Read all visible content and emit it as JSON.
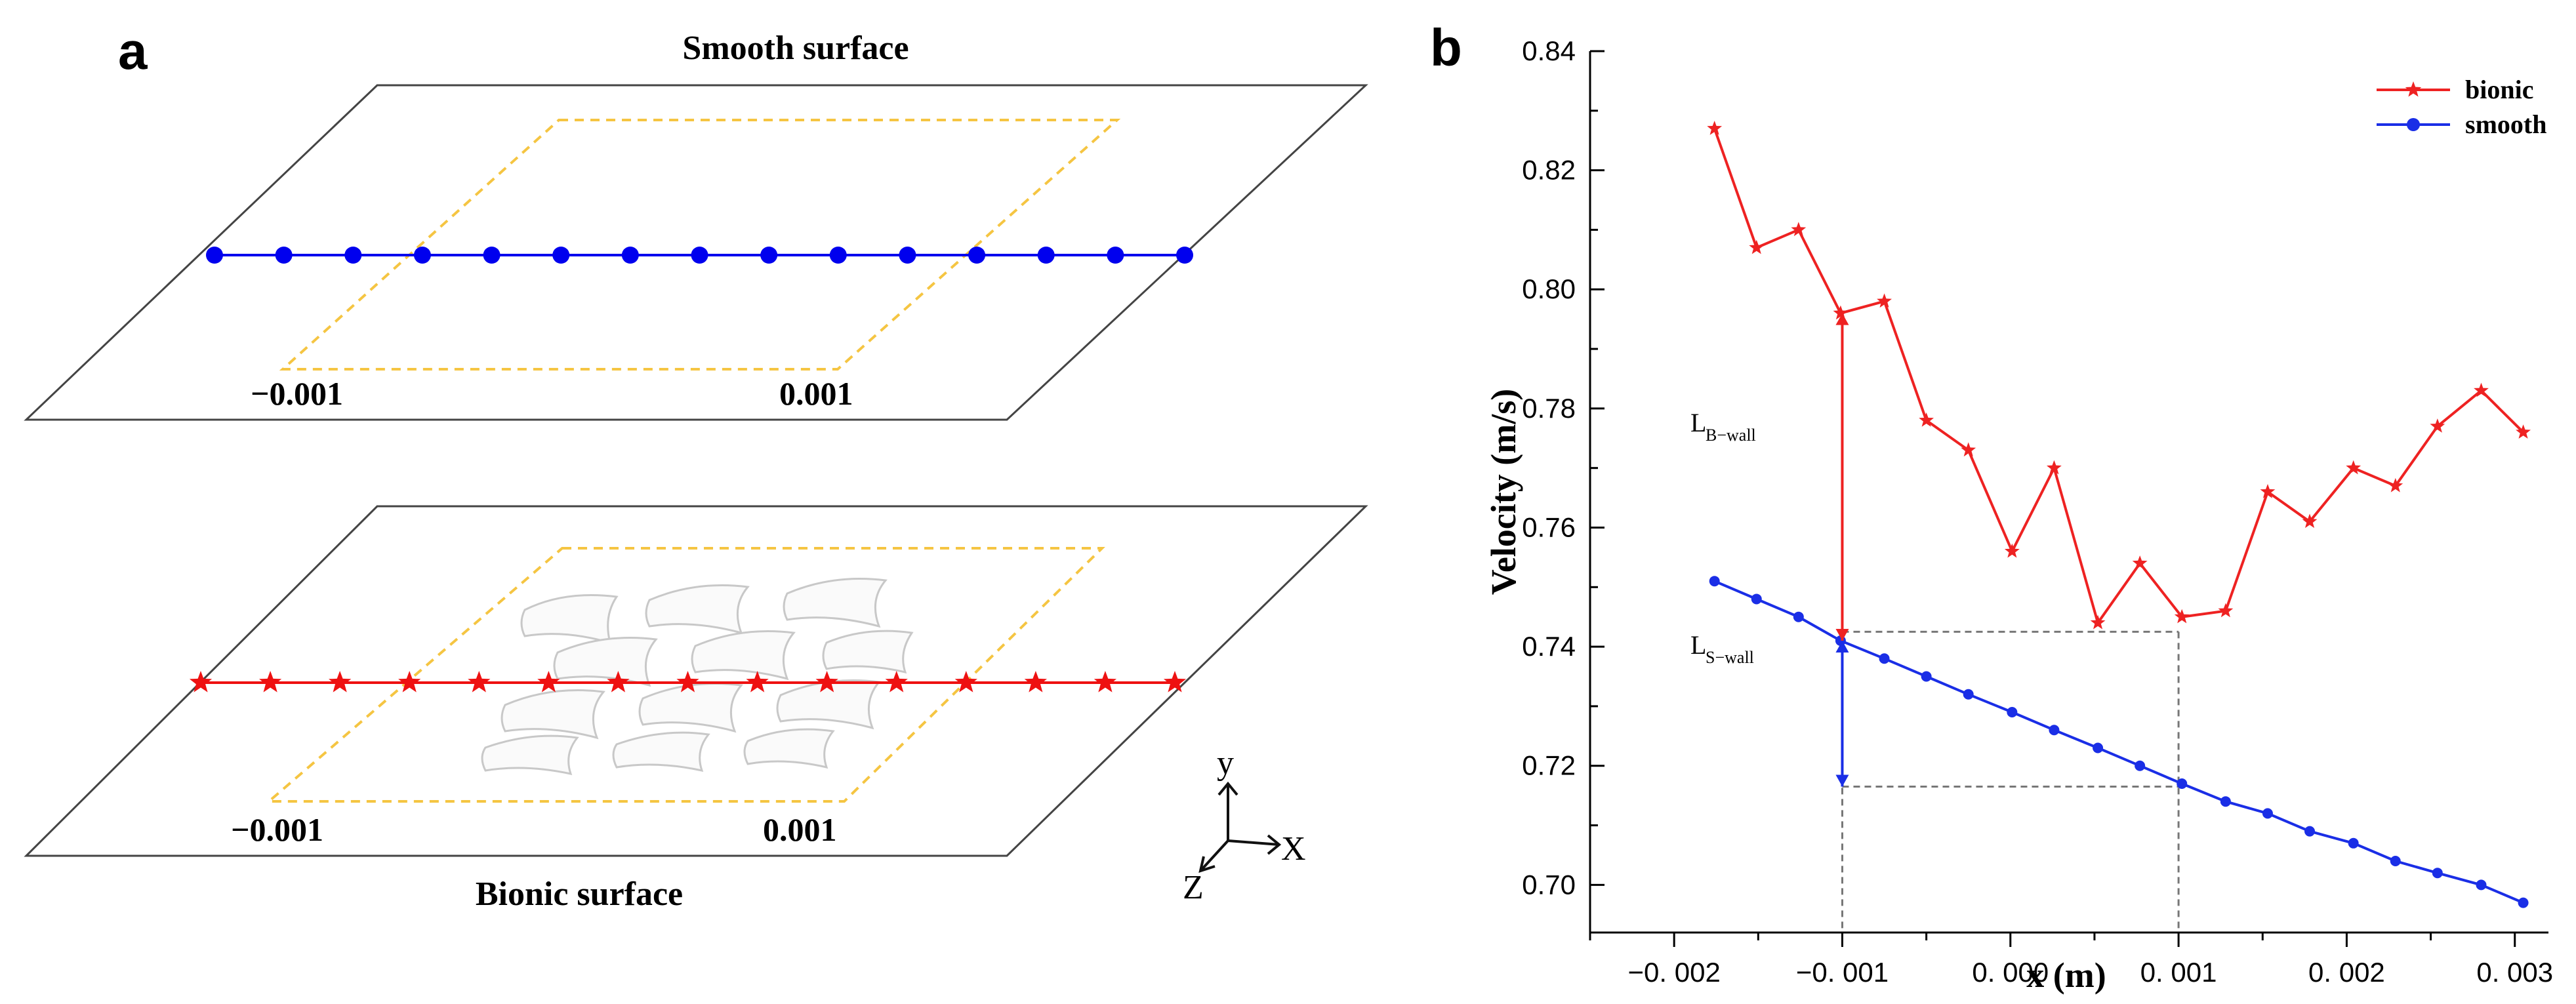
{
  "panel_a": {
    "letter": "a",
    "smooth_title": "Smooth surface",
    "bionic_title": "Bionic surface",
    "smooth_left_label": "−0.001",
    "smooth_right_label": "0.001",
    "bionic_left_label": "−0.001",
    "bionic_right_label": "0.001",
    "smooth_marker_count": 15,
    "bionic_marker_count": 15,
    "axes_labels": {
      "y": "y",
      "x": "X",
      "z": "Z"
    },
    "colors": {
      "smooth": "#0000ee",
      "bionic": "#ee1111",
      "boundary": "#f5c542",
      "plate": "#444444"
    }
  },
  "panel_b": {
    "letter": "b",
    "annotation_b_main": "L",
    "annotation_b_sub": "B−wall",
    "annotation_s_main": "L",
    "annotation_s_sub": "S−wall"
  },
  "chart_data": {
    "type": "line",
    "xlabel": "x (m)",
    "ylabel": "Velocity  (m/s)",
    "xlim": [
      -0.0025,
      0.0032
    ],
    "ylim": [
      0.692,
      0.84
    ],
    "xticks": [
      -0.002,
      -0.001,
      0.0,
      0.001,
      0.002,
      0.003
    ],
    "xtick_labels": [
      "−0. 002",
      "−0. 001",
      "0. 000",
      "0. 001",
      "0. 002",
      "0. 003"
    ],
    "yticks": [
      0.7,
      0.72,
      0.74,
      0.76,
      0.78,
      0.8,
      0.82,
      0.84
    ],
    "ytick_labels": [
      "0.70",
      "0.72",
      "0.74",
      "0.76",
      "0.78",
      "0.80",
      "0.82",
      "0.84"
    ],
    "legend_position": "top-right",
    "series": [
      {
        "name": "bionic",
        "color": "#ee2222",
        "marker": "star",
        "x": [
          -0.00176,
          -0.00151,
          -0.00126,
          -0.00101,
          -0.00075,
          -0.0005,
          -0.00025,
          1e-05,
          0.00026,
          0.00052,
          0.00077,
          0.00102,
          0.00128,
          0.00153,
          0.00178,
          0.00204,
          0.00229,
          0.00254,
          0.0028,
          0.00305
        ],
        "y": [
          0.827,
          0.807,
          0.81,
          0.796,
          0.798,
          0.778,
          0.773,
          0.756,
          0.77,
          0.744,
          0.754,
          0.745,
          0.746,
          0.766,
          0.761,
          0.77,
          0.767,
          0.777,
          0.783,
          0.776
        ]
      },
      {
        "name": "smooth",
        "color": "#1a2ee6",
        "marker": "circle",
        "x": [
          -0.00176,
          -0.00151,
          -0.00126,
          -0.00101,
          -0.00075,
          -0.0005,
          -0.00025,
          1e-05,
          0.00026,
          0.00052,
          0.00077,
          0.00102,
          0.00128,
          0.00153,
          0.00178,
          0.00204,
          0.00229,
          0.00254,
          0.0028,
          0.00305
        ],
        "y": [
          0.751,
          0.748,
          0.745,
          0.741,
          0.738,
          0.735,
          0.732,
          0.729,
          0.726,
          0.723,
          0.72,
          0.717,
          0.714,
          0.712,
          0.709,
          0.707,
          0.704,
          0.702,
          0.7,
          0.697
        ]
      }
    ],
    "annotations": [
      {
        "label": "L B-wall",
        "x": -0.001,
        "from": 0.741,
        "to": 0.796
      },
      {
        "label": "L S-wall",
        "x": -0.001,
        "from": 0.7165,
        "to": 0.741
      }
    ],
    "reference_lines": {
      "x_values": [
        -0.001,
        0.001
      ],
      "y_values": [
        0.7425,
        0.7165
      ]
    }
  }
}
